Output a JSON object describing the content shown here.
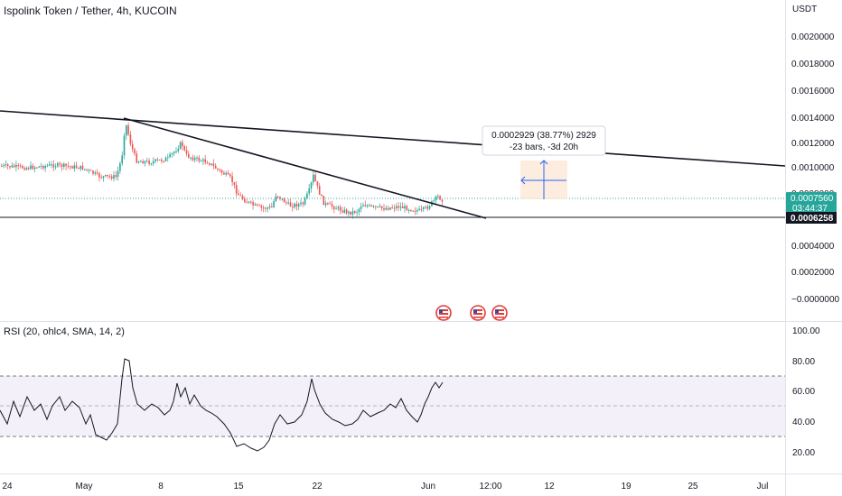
{
  "header": {
    "title": "Ispolink Token / Tether, 4h, KUCOIN",
    "currency": "USDT"
  },
  "price_axis": {
    "labels": [
      "0.0020000",
      "0.0018000",
      "0.0016000",
      "0.0014000",
      "0.0012000",
      "0.0010000",
      "0.0008000",
      "0.0004000",
      "0.0002000",
      "−0.0000000"
    ],
    "current_price": "0.0007560",
    "countdown": "03:44:37",
    "level_price": "0.0006258"
  },
  "measure_tooltip": {
    "line1": "0.0002929 (38.77%) 2929",
    "line2": "-23 bars, -3d 20h"
  },
  "rsi": {
    "label": "RSI (20, ohlc4, SMA, 14, 2)",
    "axis_labels": [
      "100.00",
      "80.00",
      "60.00",
      "40.00",
      "20.00"
    ]
  },
  "time_axis": {
    "labels": [
      "24",
      "May",
      "8",
      "15",
      "22",
      "Jun",
      "12:00",
      "12",
      "19",
      "25",
      "Jul"
    ]
  },
  "events": [
    "us-flag-icon",
    "us-flag-icon",
    "us-flag-icon"
  ],
  "colors": {
    "up": "#26a69a",
    "down": "#ef5350",
    "level": "#131722",
    "rsi_band": "#7e57c2",
    "measure": "#2962ff"
  }
}
